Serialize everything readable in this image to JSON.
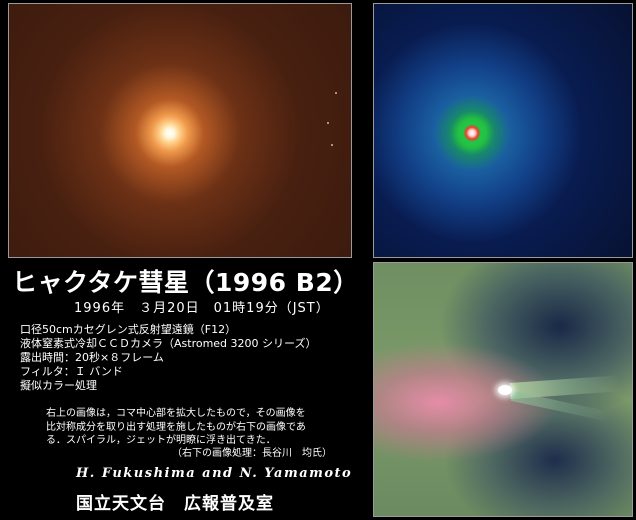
{
  "title": "ヒャクタケ彗星（1996 B2）",
  "datetime": "1996年　３月20日　01時19分（JST）",
  "specs": [
    "口径50cmカセグレン式反射望遠鏡（F12）",
    "液体窒素式冷却ＣＣＤカメラ（Astromed 3200 シリーズ）",
    "露出時間：20秒×８フレーム",
    "フィルタ：Ｉ バンド",
    "擬似カラー処理"
  ],
  "description": [
    "右上の画像は，コマ中心部を拡大したもので，その画像を",
    "比対称成分を取り出す処理を施したものが右下の画像であ",
    "る．スパイラル，ジェットが明瞭に浮き出てきた．",
    "（右下の画像処理：長谷川　均氏）"
  ],
  "authors": "H. Fukushima  and  N. Yamamoto",
  "observatory": "国立天文台　広報普及室",
  "panels": {
    "orange_colors": [
      "#3a1a0e",
      "#f09a4c",
      "#ffffff"
    ],
    "blue_colors": [
      "#071233",
      "#23c040",
      "#e8402a"
    ],
    "jet_colors": [
      "#7d9b6a",
      "#eb8caa",
      "#142346"
    ]
  }
}
